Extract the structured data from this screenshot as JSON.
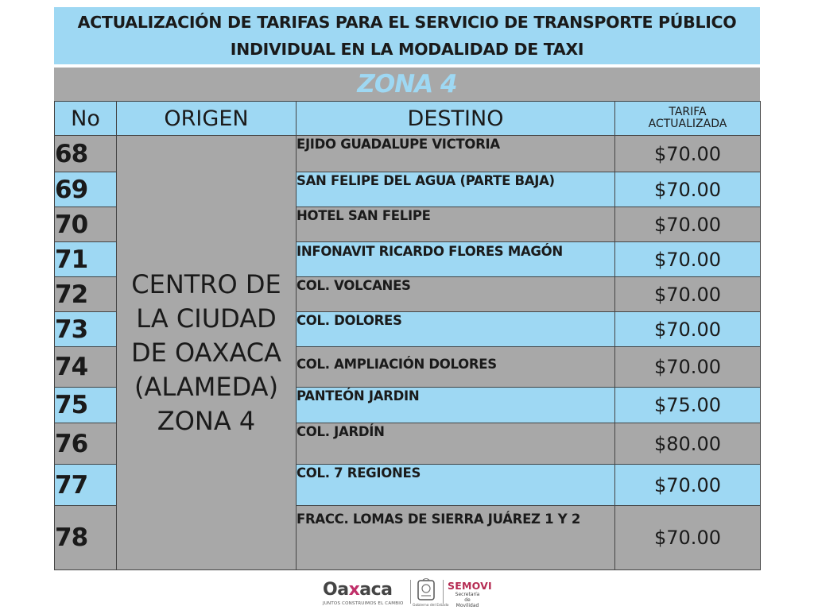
{
  "title": {
    "line1": "ACTUALIZACIÓN DE TARIFAS PARA EL SERVICIO DE TRANSPORTE PÚBLICO",
    "line2": "INDIVIDUAL EN LA MODALIDAD DE TAXI"
  },
  "zone_label": "ZONA 4",
  "headers": {
    "no": "No",
    "origin": "ORIGEN",
    "destination": "DESTINO",
    "tarifa_line1": "TARIFA",
    "tarifa_line2": "ACTUALIZADA"
  },
  "origin": {
    "line1": "CENTRO DE",
    "line2": "LA CIUDAD",
    "line3": "DE OAXACA",
    "line4": "(ALAMEDA)",
    "line5": "ZONA 4"
  },
  "rows": [
    {
      "no": "68",
      "destination": "EJIDO GUADALUPE VICTORIA",
      "tarifa": "$70.00"
    },
    {
      "no": "69",
      "destination": "SAN FELIPE DEL AGUA (PARTE BAJA)",
      "tarifa": "$70.00"
    },
    {
      "no": "70",
      "destination": "HOTEL SAN FELIPE",
      "tarifa": "$70.00"
    },
    {
      "no": "71",
      "destination": "INFONAVIT RICARDO FLORES MAGÓN",
      "tarifa": "$70.00"
    },
    {
      "no": "72",
      "destination": "COL. VOLCANES",
      "tarifa": "$70.00"
    },
    {
      "no": "73",
      "destination": "COL. DOLORES",
      "tarifa": "$70.00"
    },
    {
      "no": "74",
      "destination": "COL. AMPLIACIÓN DOLORES",
      "tarifa": "$70.00"
    },
    {
      "no": "75",
      "destination": "PANTEÓN JARDIN",
      "tarifa": "$75.00"
    },
    {
      "no": "76",
      "destination": "COL. JARDÍN",
      "tarifa": "$80.00"
    },
    {
      "no": "77",
      "destination": "COL. 7 REGIONES",
      "tarifa": "$70.00"
    },
    {
      "no": "78",
      "destination": "FRACC. LOMAS DE SIERRA JUÁREZ 1 Y 2",
      "tarifa": "$70.00"
    }
  ],
  "footer": {
    "oaxaca_pre": "Oa",
    "oaxaca_x": "x",
    "oaxaca_post": "aca",
    "oaxaca_tagline": "JUNTOS CONSTRUIMOS EL CAMBIO",
    "shield_label": "Gobierno del Estado",
    "semovi": "SEMOVI",
    "semovi_sub1": "Secretaría de",
    "semovi_sub2": "Movilidad"
  },
  "colors": {
    "blue": "#9ed8f3",
    "gray": "#a8a8a8",
    "semovi": "#b52b52"
  }
}
